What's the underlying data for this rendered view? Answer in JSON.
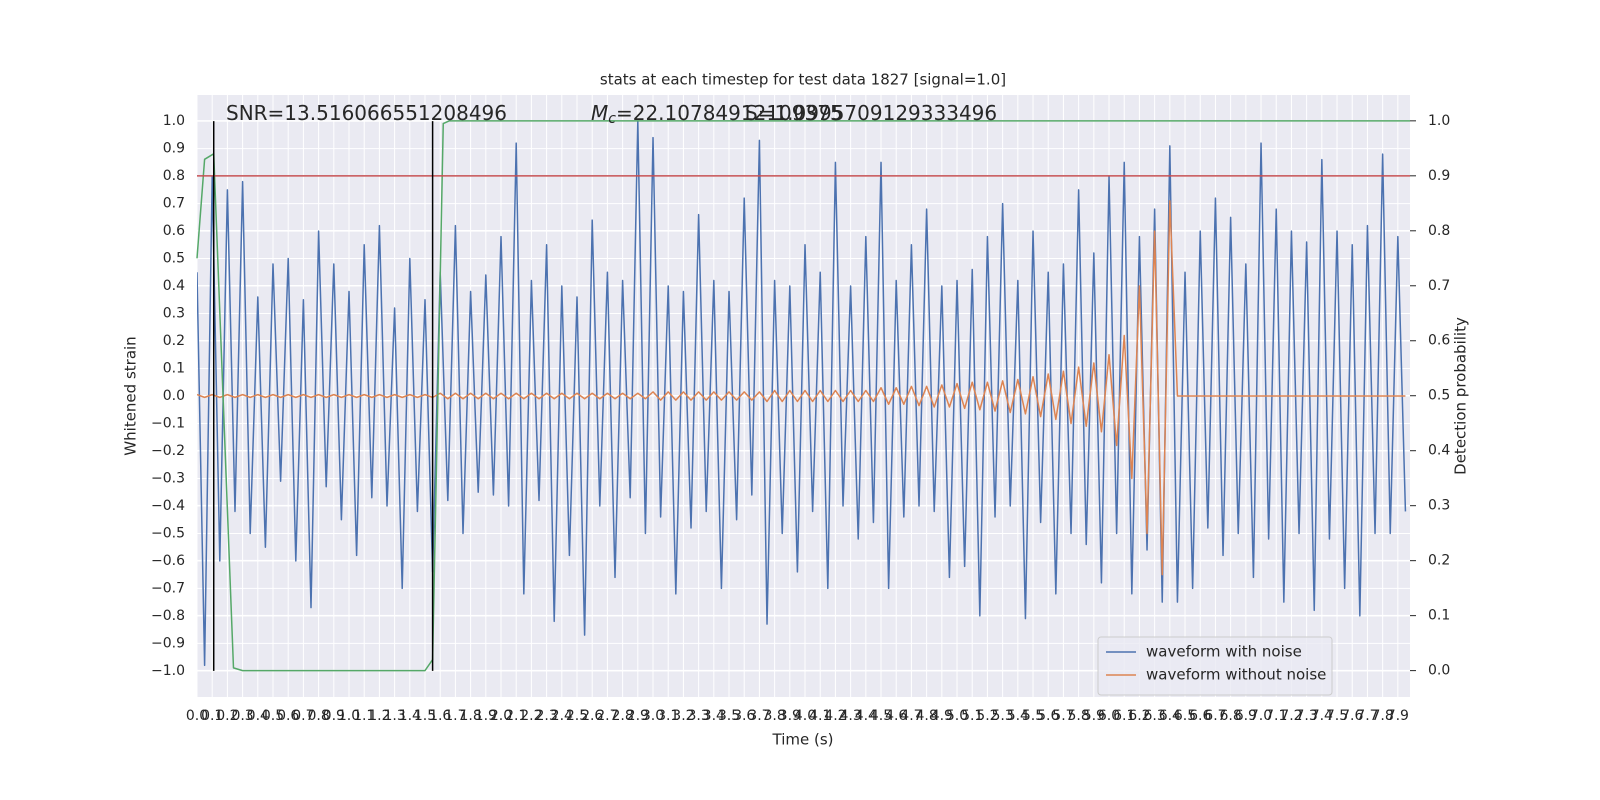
{
  "chart_data": {
    "type": "line",
    "title": "stats at each timestep for test data 1827 [signal=1.0]",
    "xlabel": "Time (s)",
    "ylabel": "Whitened strain",
    "y2label": "Detection probability",
    "annotations": [
      {
        "text": "SNR=13.516066551208496"
      },
      {
        "text": "M",
        "sub": "c",
        "rest": "=22.10784912109375"
      },
      {
        "text": "S=1.0995709129333496"
      }
    ],
    "grid": true,
    "legend": "lower right",
    "xlim": [
      0,
      7.98
    ],
    "ylim": [
      -1.095,
      1.095
    ],
    "y2lim": [
      -0.048,
      1.047
    ],
    "xticks": [
      {
        "value": 0,
        "label": "0.0"
      },
      {
        "value": 0.1,
        "label": "0.1"
      },
      {
        "value": 0.2,
        "label": "0.2"
      },
      {
        "value": 0.3,
        "label": "0.3"
      },
      {
        "value": 0.4,
        "label": "0.4"
      },
      {
        "value": 0.5,
        "label": "0.5"
      },
      {
        "value": 0.6,
        "label": "0.6"
      },
      {
        "value": 0.7,
        "label": "0.7"
      },
      {
        "value": 0.8,
        "label": "0.8"
      },
      {
        "value": 0.9,
        "label": "0.9"
      },
      {
        "value": 1,
        "label": "1.0"
      },
      {
        "value": 1.1,
        "label": "1.1"
      },
      {
        "value": 1.2,
        "label": "1.2"
      },
      {
        "value": 1.3,
        "label": "1.3"
      },
      {
        "value": 1.4,
        "label": "1.4"
      },
      {
        "value": 1.5,
        "label": "1.5"
      },
      {
        "value": 1.6,
        "label": "1.6"
      },
      {
        "value": 1.7,
        "label": "1.7"
      },
      {
        "value": 1.8,
        "label": "1.8"
      },
      {
        "value": 1.9,
        "label": "1.9"
      },
      {
        "value": 2,
        "label": "2.0"
      },
      {
        "value": 2.1,
        "label": "2.1"
      },
      {
        "value": 2.2,
        "label": "2.2"
      },
      {
        "value": 2.3,
        "label": "2.3"
      },
      {
        "value": 2.4,
        "label": "2.4"
      },
      {
        "value": 2.5,
        "label": "2.5"
      },
      {
        "value": 2.6,
        "label": "2.6"
      },
      {
        "value": 2.7,
        "label": "2.7"
      },
      {
        "value": 2.8,
        "label": "2.8"
      },
      {
        "value": 2.9,
        "label": "2.9"
      },
      {
        "value": 3,
        "label": "3.0"
      },
      {
        "value": 3.1,
        "label": "3.1"
      },
      {
        "value": 3.2,
        "label": "3.2"
      },
      {
        "value": 3.3,
        "label": "3.3"
      },
      {
        "value": 3.4,
        "label": "3.4"
      },
      {
        "value": 3.5,
        "label": "3.5"
      },
      {
        "value": 3.6,
        "label": "3.6"
      },
      {
        "value": 3.7,
        "label": "3.7"
      },
      {
        "value": 3.8,
        "label": "3.8"
      },
      {
        "value": 3.9,
        "label": "3.9"
      },
      {
        "value": 4,
        "label": "4.0"
      },
      {
        "value": 4.1,
        "label": "4.1"
      },
      {
        "value": 4.2,
        "label": "4.2"
      },
      {
        "value": 4.3,
        "label": "4.3"
      },
      {
        "value": 4.4,
        "label": "4.4"
      },
      {
        "value": 4.5,
        "label": "4.5"
      },
      {
        "value": 4.6,
        "label": "4.6"
      },
      {
        "value": 4.7,
        "label": "4.7"
      },
      {
        "value": 4.8,
        "label": "4.8"
      },
      {
        "value": 4.9,
        "label": "4.9"
      },
      {
        "value": 5,
        "label": "5.0"
      },
      {
        "value": 5.1,
        "label": "5.1"
      },
      {
        "value": 5.2,
        "label": "5.2"
      },
      {
        "value": 5.3,
        "label": "5.3"
      },
      {
        "value": 5.4,
        "label": "5.4"
      },
      {
        "value": 5.5,
        "label": "5.5"
      },
      {
        "value": 5.6,
        "label": "5.6"
      },
      {
        "value": 5.7,
        "label": "5.7"
      },
      {
        "value": 5.8,
        "label": "5.8"
      },
      {
        "value": 5.9,
        "label": "5.9"
      },
      {
        "value": 6,
        "label": "6.0"
      },
      {
        "value": 6.1,
        "label": "6.1"
      },
      {
        "value": 6.2,
        "label": "6.2"
      },
      {
        "value": 6.3,
        "label": "6.3"
      },
      {
        "value": 6.4,
        "label": "6.4"
      },
      {
        "value": 6.5,
        "label": "6.5"
      },
      {
        "value": 6.6,
        "label": "6.6"
      },
      {
        "value": 6.7,
        "label": "6.7"
      },
      {
        "value": 6.8,
        "label": "6.8"
      },
      {
        "value": 6.9,
        "label": "6.9"
      },
      {
        "value": 7,
        "label": "7.0"
      },
      {
        "value": 7.1,
        "label": "7.1"
      },
      {
        "value": 7.2,
        "label": "7.2"
      },
      {
        "value": 7.3,
        "label": "7.3"
      },
      {
        "value": 7.4,
        "label": "7.4"
      },
      {
        "value": 7.5,
        "label": "7.5"
      },
      {
        "value": 7.6,
        "label": "7.6"
      },
      {
        "value": 7.7,
        "label": "7.7"
      },
      {
        "value": 7.8,
        "label": "7.8"
      },
      {
        "value": 7.9,
        "label": "7.9"
      }
    ],
    "yticks": [
      {
        "value": 1,
        "label": "1.0"
      },
      {
        "value": 0.9,
        "label": "0.9"
      },
      {
        "value": 0.8,
        "label": "0.8"
      },
      {
        "value": 0.7,
        "label": "0.7"
      },
      {
        "value": 0.6,
        "label": "0.6"
      },
      {
        "value": 0.5,
        "label": "0.5"
      },
      {
        "value": 0.4,
        "label": "0.4"
      },
      {
        "value": 0.3,
        "label": "0.3"
      },
      {
        "value": 0.2,
        "label": "0.2"
      },
      {
        "value": 0.1,
        "label": "0.1"
      },
      {
        "value": 0,
        "label": "0.0"
      },
      {
        "value": -0.1,
        "label": "−0.1"
      },
      {
        "value": -0.2,
        "label": "−0.2"
      },
      {
        "value": -0.3,
        "label": "−0.3"
      },
      {
        "value": -0.4,
        "label": "−0.4"
      },
      {
        "value": -0.5,
        "label": "−0.5"
      },
      {
        "value": -0.6,
        "label": "−0.6"
      },
      {
        "value": -0.7,
        "label": "−0.7"
      },
      {
        "value": -0.8,
        "label": "−0.8"
      },
      {
        "value": -0.9,
        "label": "−0.9"
      },
      {
        "value": -1,
        "label": "−1.0"
      }
    ],
    "y2ticks": [
      {
        "value": 1,
        "label": "1.0"
      },
      {
        "value": 0.9,
        "label": "0.9"
      },
      {
        "value": 0.8,
        "label": "0.8"
      },
      {
        "value": 0.7,
        "label": "0.7"
      },
      {
        "value": 0.6,
        "label": "0.6"
      },
      {
        "value": 0.5,
        "label": "0.5"
      },
      {
        "value": 0.4,
        "label": "0.4"
      },
      {
        "value": 0.3,
        "label": "0.3"
      },
      {
        "value": 0.2,
        "label": "0.2"
      },
      {
        "value": 0.1,
        "label": "0.1"
      },
      {
        "value": 0,
        "label": "0.0"
      }
    ],
    "vlines": {
      "x": [
        0.11,
        1.55
      ],
      "color": "#000000"
    },
    "hline": {
      "value": 0.9,
      "axis": "y2",
      "color": "#c44e52"
    },
    "x": [
      0,
      0.05,
      0.1,
      0.15,
      0.2,
      0.25,
      0.3,
      0.35,
      0.4,
      0.45,
      0.5,
      0.55,
      0.6,
      0.65,
      0.7,
      0.75,
      0.8,
      0.85,
      0.9,
      0.95,
      1,
      1.05,
      1.1,
      1.15,
      1.2,
      1.25,
      1.3,
      1.35,
      1.4,
      1.45,
      1.5,
      1.55,
      1.6,
      1.65,
      1.7,
      1.75,
      1.8,
      1.85,
      1.9,
      1.95,
      2,
      2.05,
      2.1,
      2.15,
      2.2,
      2.25,
      2.3,
      2.35,
      2.4,
      2.45,
      2.5,
      2.55,
      2.6,
      2.65,
      2.7,
      2.75,
      2.8,
      2.85,
      2.9,
      2.95,
      3,
      3.05,
      3.1,
      3.15,
      3.2,
      3.25,
      3.3,
      3.35,
      3.4,
      3.45,
      3.5,
      3.55,
      3.6,
      3.65,
      3.7,
      3.75,
      3.8,
      3.85,
      3.9,
      3.95,
      4,
      4.05,
      4.1,
      4.15,
      4.2,
      4.25,
      4.3,
      4.35,
      4.4,
      4.45,
      4.5,
      4.55,
      4.6,
      4.65,
      4.7,
      4.75,
      4.8,
      4.85,
      4.9,
      4.95,
      5,
      5.05,
      5.1,
      5.15,
      5.2,
      5.25,
      5.3,
      5.35,
      5.4,
      5.45,
      5.5,
      5.55,
      5.6,
      5.65,
      5.7,
      5.75,
      5.8,
      5.85,
      5.9,
      5.95,
      6,
      6.05,
      6.1,
      6.15,
      6.2,
      6.25,
      6.3,
      6.35,
      6.4,
      6.45,
      6.5,
      6.55,
      6.6,
      6.65,
      6.7,
      6.75,
      6.8,
      6.85,
      6.9,
      6.95,
      7,
      7.05,
      7.1,
      7.15,
      7.2,
      7.25,
      7.3,
      7.35,
      7.4,
      7.45,
      7.5,
      7.55,
      7.6,
      7.65,
      7.7,
      7.75,
      7.8,
      7.85,
      7.9,
      7.95
    ],
    "series": [
      {
        "name": "waveform with noise",
        "color": "#4c72b0",
        "values": [
          0.45,
          -0.98,
          0.8,
          -0.6,
          0.75,
          -0.42,
          0.78,
          -0.5,
          0.36,
          -0.55,
          0.48,
          -0.31,
          0.5,
          -0.6,
          0.35,
          -0.77,
          0.6,
          -0.33,
          0.48,
          -0.45,
          0.38,
          -0.58,
          0.55,
          -0.37,
          0.62,
          -0.4,
          0.32,
          -0.7,
          0.5,
          -0.42,
          0.35,
          -0.64,
          0.45,
          -0.38,
          0.62,
          -0.5,
          0.38,
          -0.35,
          0.44,
          -0.36,
          0.58,
          -0.4,
          0.92,
          -0.72,
          0.42,
          -0.38,
          0.55,
          -0.82,
          0.4,
          -0.58,
          0.36,
          -0.87,
          0.64,
          -0.4,
          0.45,
          -0.66,
          0.42,
          -0.37,
          1.0,
          -0.5,
          0.94,
          -0.44,
          0.4,
          -0.72,
          0.38,
          -0.48,
          0.66,
          -0.42,
          0.42,
          -0.7,
          0.38,
          -0.45,
          0.72,
          -0.36,
          0.93,
          -0.83,
          0.42,
          -0.5,
          0.4,
          -0.64,
          0.55,
          -0.42,
          0.45,
          -0.7,
          0.85,
          -0.4,
          0.4,
          -0.52,
          0.58,
          -0.46,
          0.85,
          -0.7,
          0.42,
          -0.44,
          0.55,
          -0.4,
          0.68,
          -0.42,
          0.4,
          -0.66,
          0.42,
          -0.62,
          0.46,
          -0.8,
          0.58,
          -0.44,
          0.7,
          -0.4,
          0.42,
          -0.81,
          0.6,
          -0.46,
          0.45,
          -0.72,
          0.48,
          -0.5,
          0.75,
          -0.54,
          0.52,
          -0.68,
          0.8,
          -0.5,
          0.85,
          -0.72,
          0.58,
          -0.56,
          0.68,
          -0.75,
          0.91,
          -0.75,
          0.45,
          -0.7,
          0.6,
          -0.48,
          0.72,
          -0.58,
          0.65,
          -0.5,
          0.48,
          -0.66,
          0.92,
          -0.52,
          0.68,
          -0.75,
          0.6,
          -0.5,
          0.56,
          -0.78,
          0.86,
          -0.52,
          0.6,
          -0.7,
          0.55,
          -0.8,
          0.62,
          -0.5,
          0.88,
          -0.5,
          0.58,
          -0.42
        ]
      },
      {
        "name": "waveform without noise",
        "color": "#dd8452",
        "values": [
          0.005,
          -0.005,
          0.005,
          -0.005,
          0.005,
          -0.005,
          0.005,
          -0.005,
          0.005,
          -0.005,
          0.005,
          -0.005,
          0.005,
          -0.005,
          0.005,
          -0.005,
          0.005,
          -0.005,
          0.005,
          -0.005,
          0.005,
          -0.005,
          0.005,
          -0.005,
          0.005,
          -0.005,
          0.005,
          -0.005,
          0.005,
          -0.005,
          0.005,
          -0.005,
          0.01,
          -0.01,
          0.01,
          -0.01,
          0.01,
          -0.01,
          0.01,
          -0.01,
          0.01,
          -0.01,
          0.01,
          -0.01,
          0.01,
          -0.01,
          0.01,
          -0.01,
          0.01,
          -0.01,
          0.01,
          -0.01,
          0.01,
          -0.01,
          0.01,
          -0.01,
          0.01,
          -0.01,
          0.01,
          -0.01,
          0.015,
          -0.015,
          0.015,
          -0.015,
          0.015,
          -0.015,
          0.015,
          -0.015,
          0.015,
          -0.015,
          0.015,
          -0.015,
          0.015,
          -0.015,
          0.015,
          -0.02,
          0.02,
          -0.02,
          0.02,
          -0.02,
          0.02,
          -0.02,
          0.02,
          -0.02,
          0.02,
          -0.02,
          0.02,
          -0.02,
          0.02,
          -0.02,
          0.03,
          -0.03,
          0.03,
          -0.03,
          0.035,
          -0.035,
          0.035,
          -0.04,
          0.04,
          -0.04,
          0.045,
          -0.045,
          0.05,
          -0.05,
          0.05,
          -0.055,
          0.055,
          -0.06,
          0.06,
          -0.065,
          0.07,
          -0.075,
          0.08,
          -0.085,
          0.09,
          -0.1,
          0.105,
          -0.11,
          0.12,
          -0.13,
          0.15,
          -0.18,
          0.22,
          -0.3,
          0.4,
          -0.5,
          0.6,
          -0.65,
          0.71,
          0,
          0,
          0,
          0,
          0,
          0,
          0,
          0,
          0,
          0,
          0,
          0,
          0,
          0,
          0,
          0,
          0,
          0,
          0,
          0,
          0,
          0,
          0,
          0,
          0,
          0,
          0,
          0,
          0,
          0,
          0
        ]
      },
      {
        "color": "#55a868",
        "axis": "y2",
        "x": [
          0,
          0.05,
          0.11,
          0.24,
          0.3,
          1.5,
          1.55,
          1.62,
          1.66,
          7.98
        ],
        "values": [
          0.75,
          0.93,
          0.94,
          0.005,
          0,
          0,
          0.02,
          0.995,
          1,
          1
        ]
      }
    ]
  }
}
